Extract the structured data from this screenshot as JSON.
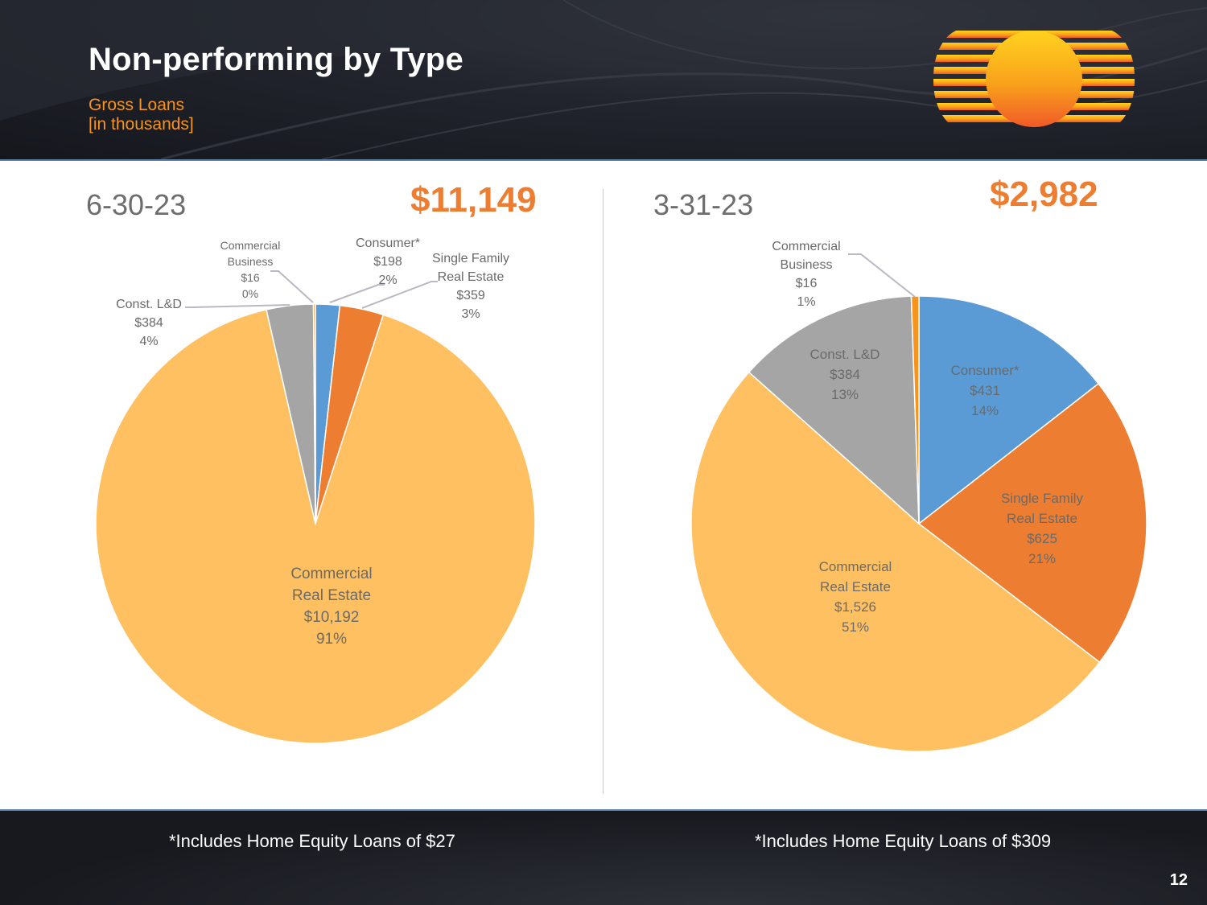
{
  "header": {
    "title": "Non-performing by Type",
    "subtitle_line1": "Gross Loans",
    "subtitle_line2": "[in thousands]"
  },
  "colors": {
    "consumer": "#5b9bd5",
    "single_family": "#ed7d31",
    "commercial_real_estate": "#ffc061",
    "const_ld": "#a5a5a5",
    "commercial_business": "#f7941d",
    "accent": "#ed7d31"
  },
  "footer": {
    "note_left": "*Includes Home Equity Loans of $27",
    "note_right": "*Includes Home Equity Loans of $309",
    "page_number": "12"
  },
  "chart_data": [
    {
      "type": "pie",
      "title": "6-30-23",
      "total": "$11,149",
      "slices": [
        {
          "key": "consumer",
          "lines": [
            "Consumer*",
            "$198",
            "2%"
          ],
          "value": 198,
          "color": "#5b9bd5"
        },
        {
          "key": "single_family",
          "lines": [
            "Single Family",
            "Real Estate",
            "$359",
            "3%"
          ],
          "value": 359,
          "color": "#ed7d31"
        },
        {
          "key": "commercial_real_estate",
          "lines": [
            "Commercial",
            "Real Estate",
            "$10,192",
            "91%"
          ],
          "value": 10192,
          "color": "#ffc061"
        },
        {
          "key": "const_ld",
          "lines": [
            "Const. L&D",
            "$384",
            "4%"
          ],
          "value": 384,
          "color": "#a5a5a5"
        },
        {
          "key": "commercial_business",
          "lines": [
            "Commercial",
            "Business",
            "$16",
            "0%"
          ],
          "value": 16,
          "color": "#f7941d"
        }
      ]
    },
    {
      "type": "pie",
      "title": "3-31-23",
      "total": "$2,982",
      "slices": [
        {
          "key": "consumer",
          "lines": [
            "Consumer*",
            "$431",
            "14%"
          ],
          "value": 431,
          "color": "#5b9bd5"
        },
        {
          "key": "single_family",
          "lines": [
            "Single Family",
            "Real Estate",
            "$625",
            "21%"
          ],
          "value": 625,
          "color": "#ed7d31"
        },
        {
          "key": "commercial_real_estate",
          "lines": [
            "Commercial",
            "Real Estate",
            "$1,526",
            "51%"
          ],
          "value": 1526,
          "color": "#ffc061"
        },
        {
          "key": "const_ld",
          "lines": [
            "Const. L&D",
            "$384",
            "13%"
          ],
          "value": 384,
          "color": "#a5a5a5"
        },
        {
          "key": "commercial_business",
          "lines": [
            "Commercial",
            "Business",
            "$16",
            "1%"
          ],
          "value": 16,
          "color": "#f7941d"
        }
      ]
    }
  ]
}
